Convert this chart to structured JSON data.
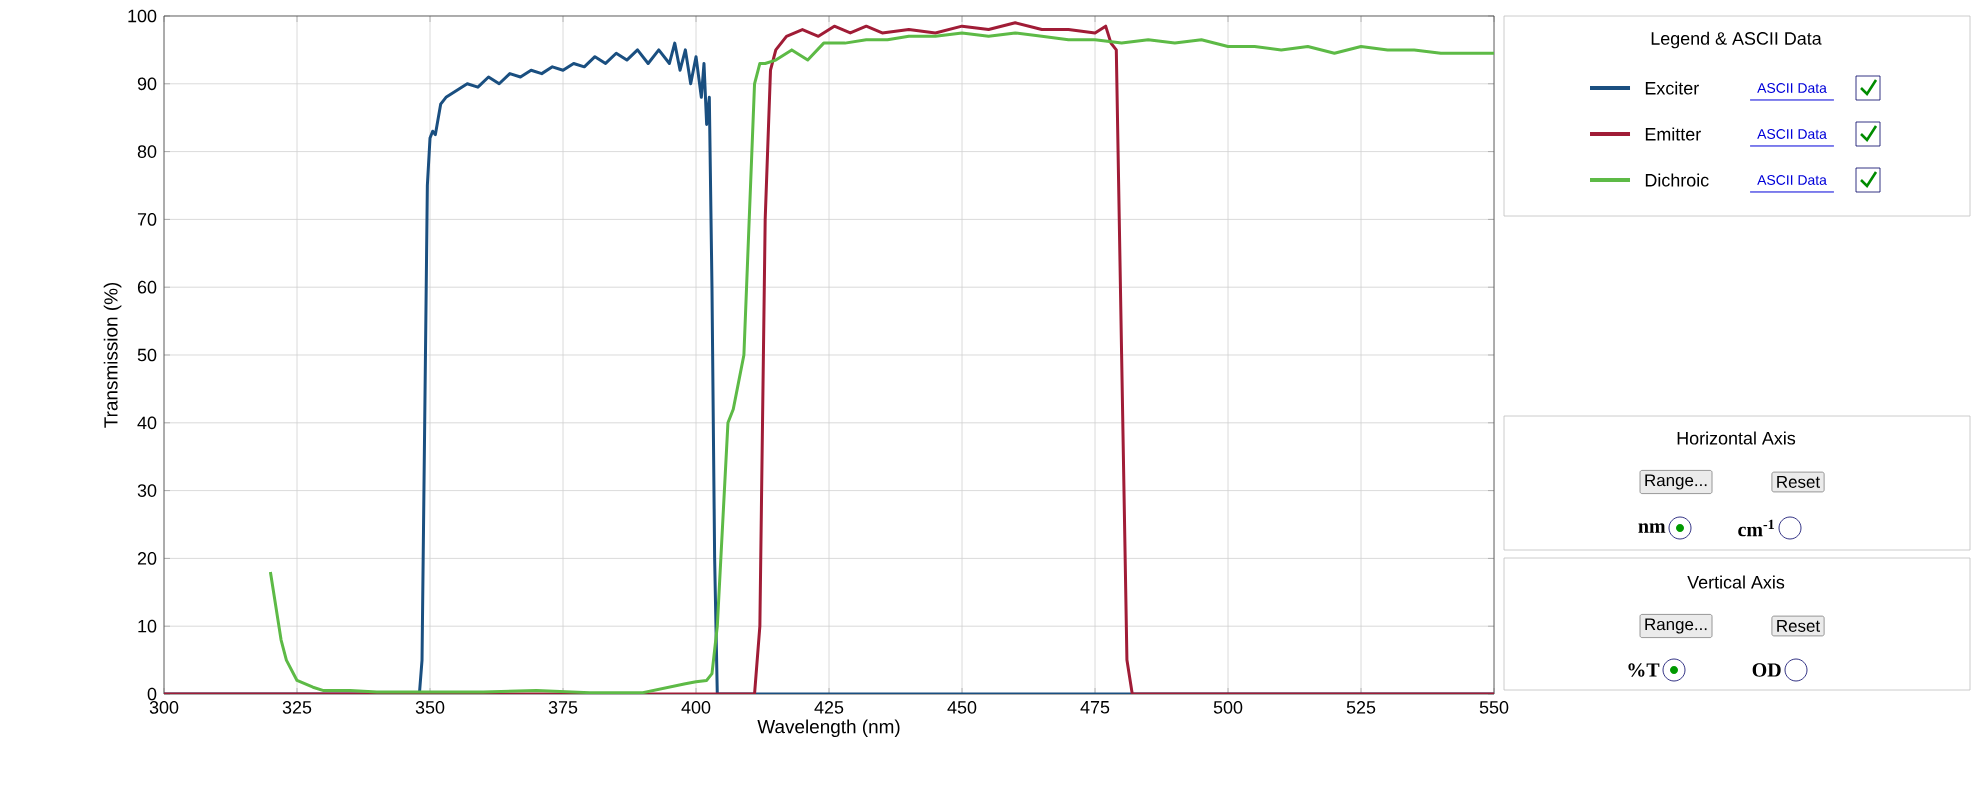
{
  "chart_data": {
    "type": "line",
    "xlabel": "Wavelength (nm)",
    "ylabel": "Transmission (%)",
    "legend_title": "Legend & ASCII Data",
    "xlim": [
      300,
      550
    ],
    "ylim": [
      0,
      100
    ],
    "xticks": [
      300,
      325,
      350,
      375,
      400,
      425,
      450,
      475,
      500,
      525,
      550
    ],
    "yticks": [
      0,
      10,
      20,
      30,
      40,
      50,
      60,
      70,
      80,
      90,
      100
    ],
    "grid": true,
    "legend": "right",
    "marker": "none",
    "line_style": "solid",
    "series": [
      {
        "name": "Exciter",
        "color": "#1a4f80",
        "x": [
          300,
          347,
          348,
          348.5,
          349,
          349.5,
          350,
          350.5,
          351,
          352,
          353,
          355,
          357,
          359,
          361,
          363,
          365,
          367,
          369,
          371,
          373,
          375,
          377,
          379,
          381,
          383,
          385,
          387,
          389,
          391,
          393,
          395,
          396,
          397,
          398,
          399,
          400,
          401,
          401.5,
          402,
          402.5,
          403,
          403.5,
          404,
          550
        ],
        "values": [
          0,
          0,
          0,
          5,
          40,
          75,
          82,
          83,
          82.5,
          87,
          88,
          89,
          90,
          89.5,
          91,
          90,
          91.5,
          91,
          92,
          91.5,
          92.5,
          92,
          93,
          92.5,
          94,
          93,
          94.5,
          93.5,
          95,
          93,
          95,
          93,
          96,
          92,
          95,
          90,
          94,
          88,
          93,
          84,
          88,
          60,
          20,
          0,
          0
        ]
      },
      {
        "name": "Emitter",
        "color": "#a01c36",
        "x": [
          300,
          411,
          412,
          413,
          414,
          415,
          417,
          420,
          423,
          426,
          429,
          432,
          435,
          440,
          445,
          450,
          455,
          460,
          465,
          470,
          475,
          477,
          478,
          479,
          480,
          481,
          482,
          550
        ],
        "values": [
          0,
          0,
          10,
          70,
          92,
          95,
          97,
          98,
          97,
          98.5,
          97.5,
          98.5,
          97.5,
          98,
          97.5,
          98.5,
          98,
          99,
          98,
          98,
          97.5,
          98.5,
          96,
          95,
          50,
          5,
          0,
          0
        ]
      },
      {
        "name": "Dichroic",
        "color": "#5dba46",
        "x": [
          320,
          322,
          323,
          325,
          328,
          330,
          335,
          340,
          345,
          350,
          360,
          370,
          380,
          390,
          398,
          400,
          402,
          403,
          404,
          405,
          406,
          407,
          408,
          409,
          410,
          411,
          412,
          413,
          415,
          418,
          421,
          424,
          428,
          432,
          436,
          440,
          445,
          450,
          455,
          460,
          465,
          470,
          475,
          480,
          485,
          490,
          495,
          500,
          505,
          510,
          515,
          520,
          525,
          530,
          535,
          540,
          545,
          550
        ],
        "values": [
          18,
          8,
          5,
          2,
          1,
          0.5,
          0.5,
          0.3,
          0.3,
          0.3,
          0.3,
          0.5,
          0.2,
          0.2,
          1.5,
          1.8,
          2,
          3,
          10,
          25,
          40,
          42,
          46,
          50,
          70,
          90,
          93,
          93,
          93.5,
          95,
          93.5,
          96,
          96,
          96.5,
          96.5,
          97,
          97,
          97.5,
          97,
          97.5,
          97,
          96.5,
          96.5,
          96,
          96.5,
          96,
          96.5,
          95.5,
          95.5,
          95,
          95.5,
          94.5,
          95.5,
          95,
          95,
          94.5,
          94.5,
          94.5
        ]
      }
    ],
    "annotations": [
      "ASCII Data",
      "ASCII Data",
      "ASCII Data",
      "Horizontal  Axis",
      "Range...",
      "Reset",
      "nm",
      "cm$^{-1}$",
      "Vertical  Axis",
      "Range...",
      "Reset",
      "%T",
      "OD"
    ]
  }
}
